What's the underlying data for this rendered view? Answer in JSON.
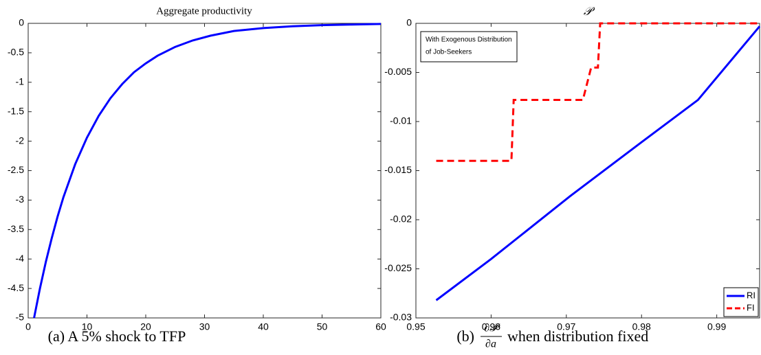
{
  "chart_data": [
    {
      "type": "line",
      "title": "Aggregate productivity",
      "x": [
        1,
        2,
        3,
        4,
        5,
        6,
        8,
        10,
        12,
        14,
        16,
        18,
        20,
        22,
        25,
        28,
        31,
        35,
        40,
        45,
        50,
        55,
        60
      ],
      "values": [
        -5,
        -4.5,
        -4.05,
        -3.65,
        -3.28,
        -2.95,
        -2.39,
        -1.94,
        -1.57,
        -1.27,
        -1.03,
        -0.83,
        -0.68,
        -0.55,
        -0.4,
        -0.29,
        -0.21,
        -0.13,
        -0.08,
        -0.05,
        -0.03,
        -0.02,
        -0.01
      ],
      "color": "#0000ff",
      "xlim": [
        0,
        60
      ],
      "xticks": [
        0,
        10,
        20,
        30,
        40,
        50,
        60
      ],
      "ylim": [
        -5,
        0
      ],
      "yticks": [
        -5,
        -4.5,
        -4,
        -3.5,
        -3,
        -2.5,
        -2,
        -1.5,
        -1,
        -0.5,
        0
      ],
      "grid": false,
      "caption": "(a) A 5% shock to TFP"
    },
    {
      "type": "line",
      "title": "𝒫",
      "series": [
        {
          "name": "RI",
          "color": "#0000ff",
          "dash": "solid",
          "x": [
            0.9527,
            0.96,
            0.9705,
            0.98,
            0.9875,
            0.9957
          ],
          "values": [
            -0.0282,
            -0.024,
            -0.0176,
            -0.0121,
            -0.0078,
            -0.0003
          ]
        },
        {
          "name": "FI",
          "color": "#ff0000",
          "dash": "dashed",
          "x": [
            0.9527,
            0.9627,
            0.963,
            0.9722,
            0.9733,
            0.9742,
            0.9745,
            0.9957
          ],
          "values": [
            -0.014,
            -0.014,
            -0.0078,
            -0.0078,
            -0.0045,
            -0.0045,
            0,
            0
          ]
        }
      ],
      "xlim": [
        0.95,
        0.9957
      ],
      "xticks": [
        0.95,
        0.96,
        0.97,
        0.98,
        0.99
      ],
      "ylim": [
        -0.03,
        0
      ],
      "yticks": [
        -0.03,
        -0.025,
        -0.02,
        -0.015,
        -0.01,
        -0.005,
        0
      ],
      "grid": false,
      "legend": "lower right",
      "annotation": [
        "With Exogenous Distribution",
        "of Job-Seekers"
      ],
      "caption": {
        "prefix": "(b)",
        "numerator": "∂𝒫",
        "denominator": "∂a",
        "suffix": "when distribution fixed"
      }
    }
  ]
}
